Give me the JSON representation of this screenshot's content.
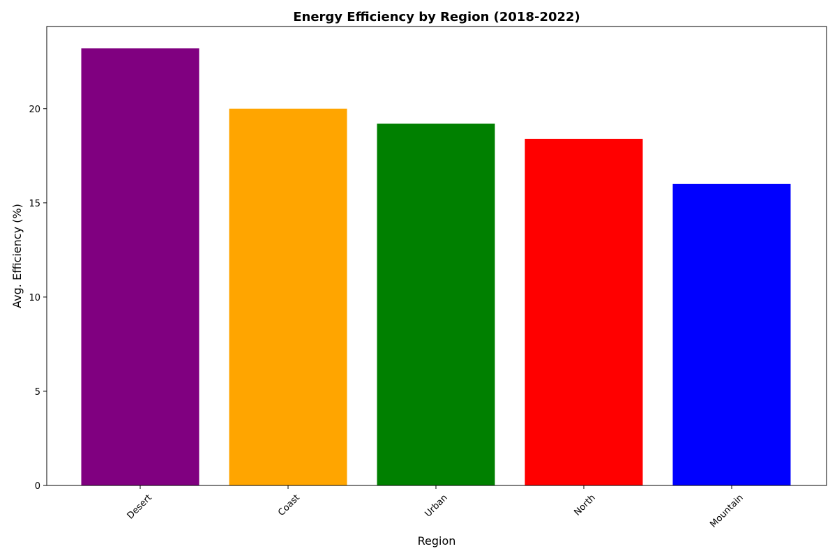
{
  "chart_data": {
    "type": "bar",
    "title": "Energy Efficiency by Region (2018-2022)",
    "xlabel": "Region",
    "ylabel": "Avg. Efficiency (%)",
    "categories": [
      "Desert",
      "Coast",
      "Urban",
      "North",
      "Mountain"
    ],
    "values": [
      23.2,
      20.0,
      19.2,
      18.4,
      16.0
    ],
    "colors": [
      "#800080",
      "#FFA500",
      "#008000",
      "#FF0000",
      "#0000FF"
    ],
    "ylim": [
      0,
      24.36
    ],
    "yticks": [
      0,
      5,
      10,
      15,
      20
    ],
    "grid": false,
    "xtick_rotation": 45
  }
}
